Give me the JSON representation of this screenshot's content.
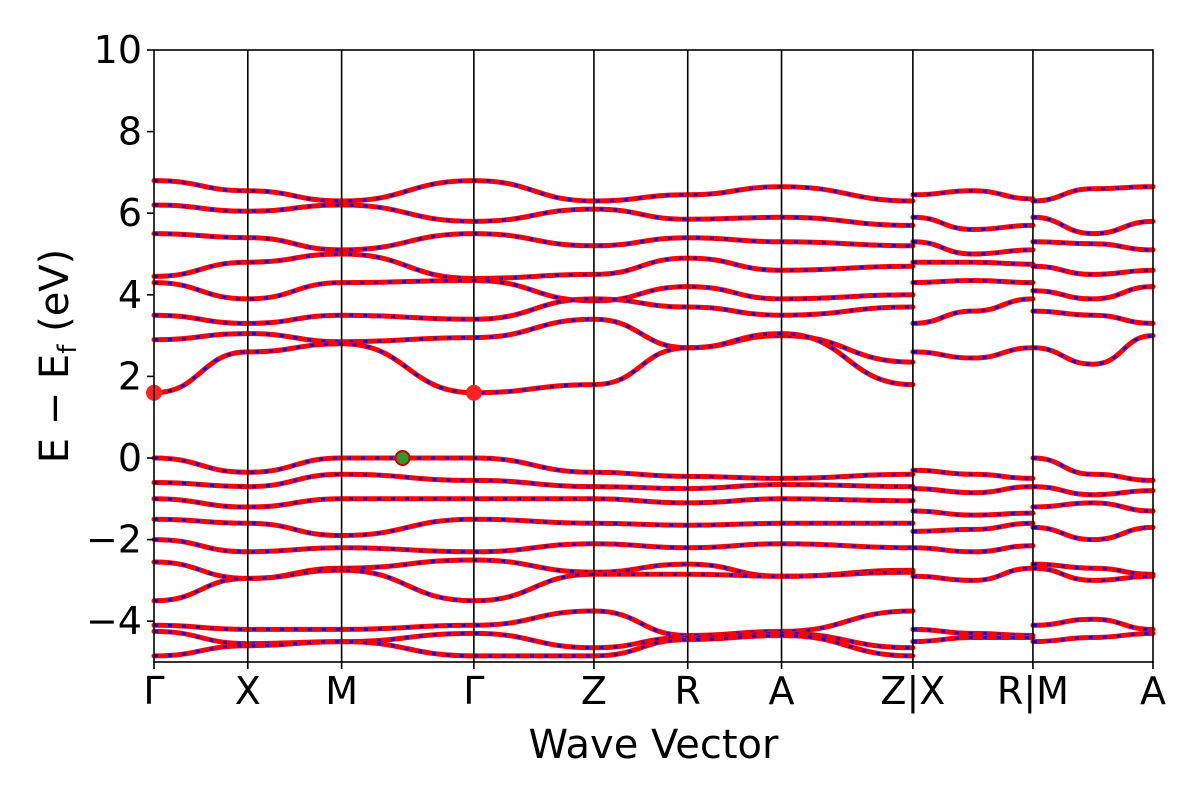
{
  "chart_data": {
    "type": "line",
    "title": "",
    "xlabel": "Wave Vector",
    "ylabel_main": "E − E",
    "ylabel_sub": "f",
    "ylabel_unit": " (eV)",
    "ylim": [
      -5,
      10
    ],
    "yticks": [
      -4,
      -2,
      0,
      2,
      4,
      6,
      8,
      10
    ],
    "ytick_labels": [
      "−4",
      "−2",
      "0",
      "2",
      "4",
      "6",
      "8",
      "10"
    ],
    "kpoints": [
      {
        "label": "Γ",
        "x": 0.0
      },
      {
        "label": "X",
        "x": 1.0
      },
      {
        "label": "M",
        "x": 2.0
      },
      {
        "label": "Γ",
        "x": 3.41
      },
      {
        "label": "Z",
        "x": 4.69
      },
      {
        "label": "R",
        "x": 5.69
      },
      {
        "label": "A",
        "x": 6.69
      },
      {
        "label": "Z|X",
        "x": 8.09
      },
      {
        "label": "R|M",
        "x": 9.37
      },
      {
        "label": "A",
        "x": 10.65
      }
    ],
    "grid": false,
    "band_colors": {
      "line": "#ff0000",
      "dash": "#0000ff"
    },
    "bands": [
      {
        "x": [
          0.0,
          1.0,
          2.0,
          3.41,
          4.69,
          5.69,
          6.69,
          8.09
        ],
        "y": [
          6.8,
          6.55,
          6.3,
          6.8,
          6.3,
          6.45,
          6.65,
          6.3
        ]
      },
      {
        "x": [
          0.0,
          1.0,
          2.0,
          3.41,
          4.69,
          5.69,
          6.69,
          8.09
        ],
        "y": [
          6.2,
          6.05,
          6.2,
          5.8,
          6.1,
          5.85,
          5.9,
          5.7
        ]
      },
      {
        "x": [
          0.0,
          1.0,
          2.0,
          3.41,
          4.69,
          5.69,
          6.69,
          8.09
        ],
        "y": [
          5.5,
          5.4,
          5.1,
          5.5,
          5.2,
          5.4,
          5.3,
          5.2
        ]
      },
      {
        "x": [
          0.0,
          1.0,
          2.0,
          3.41,
          4.69,
          5.69,
          6.69,
          8.09
        ],
        "y": [
          4.45,
          4.8,
          5.0,
          4.4,
          4.5,
          4.9,
          4.6,
          4.7
        ]
      },
      {
        "x": [
          0.0,
          1.0,
          2.0,
          3.41,
          4.69,
          5.69,
          6.69,
          8.09
        ],
        "y": [
          4.3,
          3.9,
          4.3,
          4.35,
          3.85,
          4.2,
          3.9,
          4.0
        ]
      },
      {
        "x": [
          0.0,
          1.0,
          2.0,
          3.41,
          4.69,
          5.69,
          6.69,
          8.09
        ],
        "y": [
          3.5,
          3.3,
          3.5,
          3.4,
          3.9,
          3.7,
          3.5,
          3.7
        ]
      },
      {
        "x": [
          0.0,
          1.0,
          2.0,
          3.41,
          4.69,
          5.69,
          6.69,
          8.09
        ],
        "y": [
          2.9,
          3.05,
          2.85,
          2.95,
          3.4,
          2.7,
          3.0,
          2.35
        ]
      },
      {
        "x": [
          0.0,
          1.0,
          2.0,
          3.41,
          4.69,
          5.69,
          6.69,
          8.09
        ],
        "y": [
          1.6,
          2.6,
          2.8,
          1.6,
          1.8,
          2.7,
          3.05,
          1.8
        ]
      },
      {
        "x": [
          0.0,
          1.0,
          2.0,
          3.41,
          4.69,
          5.69,
          6.69,
          8.09
        ],
        "y": [
          0.0,
          -0.35,
          0.0,
          0.0,
          -0.35,
          -0.45,
          -0.5,
          -0.4
        ]
      },
      {
        "x": [
          0.0,
          1.0,
          2.0,
          3.41,
          4.69,
          5.69,
          6.69,
          8.09
        ],
        "y": [
          -0.6,
          -0.7,
          -0.4,
          -0.55,
          -0.7,
          -0.75,
          -0.65,
          -0.7
        ]
      },
      {
        "x": [
          0.0,
          1.0,
          2.0,
          3.41,
          4.69,
          5.69,
          6.69,
          8.09
        ],
        "y": [
          -1.0,
          -1.2,
          -1.0,
          -1.0,
          -1.0,
          -1.1,
          -1.0,
          -1.05
        ]
      },
      {
        "x": [
          0.0,
          1.0,
          2.0,
          3.41,
          4.69,
          5.69,
          6.69,
          8.09
        ],
        "y": [
          -1.5,
          -1.6,
          -1.9,
          -1.5,
          -1.6,
          -1.65,
          -1.6,
          -1.6
        ]
      },
      {
        "x": [
          0.0,
          1.0,
          2.0,
          3.41,
          4.69,
          5.69,
          6.69,
          8.09
        ],
        "y": [
          -2.0,
          -2.3,
          -2.2,
          -2.3,
          -2.1,
          -2.2,
          -2.1,
          -2.2
        ]
      },
      {
        "x": [
          0.0,
          1.0,
          2.0,
          3.41,
          4.69,
          5.69,
          6.69,
          8.09
        ],
        "y": [
          -2.55,
          -2.95,
          -2.7,
          -2.5,
          -2.8,
          -2.6,
          -2.9,
          -2.75
        ]
      },
      {
        "x": [
          0.0,
          1.0,
          2.0,
          3.41,
          4.69,
          5.69,
          6.69,
          8.09
        ],
        "y": [
          -3.5,
          -2.95,
          -2.75,
          -3.5,
          -2.85,
          -2.85,
          -2.9,
          -2.8
        ]
      },
      {
        "x": [
          0.0,
          1.0,
          2.0,
          3.41,
          4.69,
          5.69,
          6.69,
          8.09
        ],
        "y": [
          -4.1,
          -4.2,
          -4.2,
          -4.1,
          -3.75,
          -4.35,
          -4.25,
          -3.75
        ]
      },
      {
        "x": [
          0.0,
          1.0,
          2.0,
          3.41,
          4.69,
          5.69,
          6.69,
          8.09
        ],
        "y": [
          -4.25,
          -4.55,
          -4.5,
          -4.3,
          -4.65,
          -4.4,
          -4.3,
          -4.65
        ]
      },
      {
        "x": [
          0.0,
          1.0,
          2.0,
          3.41,
          4.69,
          5.69,
          6.69,
          8.09
        ],
        "y": [
          -4.85,
          -4.6,
          -4.5,
          -4.85,
          -4.85,
          -4.45,
          -4.35,
          -4.85
        ]
      },
      {
        "x": [
          8.09,
          8.73,
          9.37
        ],
        "y": [
          6.45,
          6.55,
          6.35
        ]
      },
      {
        "x": [
          8.09,
          8.73,
          9.37
        ],
        "y": [
          5.9,
          5.6,
          5.7
        ]
      },
      {
        "x": [
          8.09,
          8.73,
          9.37
        ],
        "y": [
          5.3,
          5.0,
          5.1
        ]
      },
      {
        "x": [
          8.09,
          8.73,
          9.37
        ],
        "y": [
          4.8,
          4.8,
          4.75
        ]
      },
      {
        "x": [
          8.09,
          8.73,
          9.37
        ],
        "y": [
          4.3,
          4.35,
          4.3
        ]
      },
      {
        "x": [
          8.09,
          8.73,
          9.37
        ],
        "y": [
          3.3,
          3.6,
          3.9
        ]
      },
      {
        "x": [
          8.09,
          8.73,
          9.37
        ],
        "y": [
          2.6,
          2.45,
          2.7
        ]
      },
      {
        "x": [
          8.09,
          8.73,
          9.37
        ],
        "y": [
          -0.3,
          -0.4,
          -0.5
        ]
      },
      {
        "x": [
          8.09,
          8.73,
          9.37
        ],
        "y": [
          -0.75,
          -0.85,
          -0.7
        ]
      },
      {
        "x": [
          8.09,
          8.73,
          9.37
        ],
        "y": [
          -1.3,
          -1.4,
          -1.35
        ]
      },
      {
        "x": [
          8.09,
          8.73,
          9.37
        ],
        "y": [
          -1.8,
          -1.75,
          -1.6
        ]
      },
      {
        "x": [
          8.09,
          8.73,
          9.37
        ],
        "y": [
          -2.2,
          -2.3,
          -2.15
        ]
      },
      {
        "x": [
          8.09,
          8.73,
          9.37
        ],
        "y": [
          -2.9,
          -3.0,
          -2.7
        ]
      },
      {
        "x": [
          8.09,
          8.73,
          9.37
        ],
        "y": [
          -4.2,
          -4.3,
          -4.35
        ]
      },
      {
        "x": [
          8.09,
          8.73,
          9.37
        ],
        "y": [
          -4.5,
          -4.4,
          -4.4
        ]
      },
      {
        "x": [
          9.37,
          10.01,
          10.65
        ],
        "y": [
          6.3,
          6.6,
          6.65
        ]
      },
      {
        "x": [
          9.37,
          10.01,
          10.65
        ],
        "y": [
          5.9,
          5.5,
          5.8
        ]
      },
      {
        "x": [
          9.37,
          10.01,
          10.65
        ],
        "y": [
          5.3,
          5.25,
          5.1
        ]
      },
      {
        "x": [
          9.37,
          10.01,
          10.65
        ],
        "y": [
          4.7,
          4.5,
          4.6
        ]
      },
      {
        "x": [
          9.37,
          10.01,
          10.65
        ],
        "y": [
          4.1,
          3.9,
          4.2
        ]
      },
      {
        "x": [
          9.37,
          10.01,
          10.65
        ],
        "y": [
          3.6,
          3.5,
          3.3
        ]
      },
      {
        "x": [
          9.37,
          10.01,
          10.65
        ],
        "y": [
          2.7,
          2.3,
          3.0
        ]
      },
      {
        "x": [
          9.37,
          10.01,
          10.65
        ],
        "y": [
          0.0,
          -0.4,
          -0.55
        ]
      },
      {
        "x": [
          9.37,
          10.01,
          10.65
        ],
        "y": [
          -0.7,
          -0.9,
          -0.8
        ]
      },
      {
        "x": [
          9.37,
          10.01,
          10.65
        ],
        "y": [
          -1.2,
          -1.1,
          -1.3
        ]
      },
      {
        "x": [
          9.37,
          10.01,
          10.65
        ],
        "y": [
          -1.7,
          -2.0,
          -1.7
        ]
      },
      {
        "x": [
          9.37,
          10.01,
          10.65
        ],
        "y": [
          -2.6,
          -2.7,
          -2.85
        ]
      },
      {
        "x": [
          9.37,
          10.01,
          10.65
        ],
        "y": [
          -2.7,
          -3.0,
          -2.9
        ]
      },
      {
        "x": [
          9.37,
          10.01,
          10.65
        ],
        "y": [
          -4.1,
          -3.95,
          -4.2
        ]
      },
      {
        "x": [
          9.37,
          10.01,
          10.65
        ],
        "y": [
          -4.5,
          -4.4,
          -4.3
        ]
      }
    ],
    "markers": [
      {
        "x": 0.0,
        "y": 1.6,
        "color": "#ff2222"
      },
      {
        "x": 3.41,
        "y": 1.6,
        "color": "#ff2222"
      },
      {
        "x": 2.65,
        "y": 0.0,
        "color": "#2a9a2a",
        "edge": "#cc0000"
      }
    ]
  }
}
